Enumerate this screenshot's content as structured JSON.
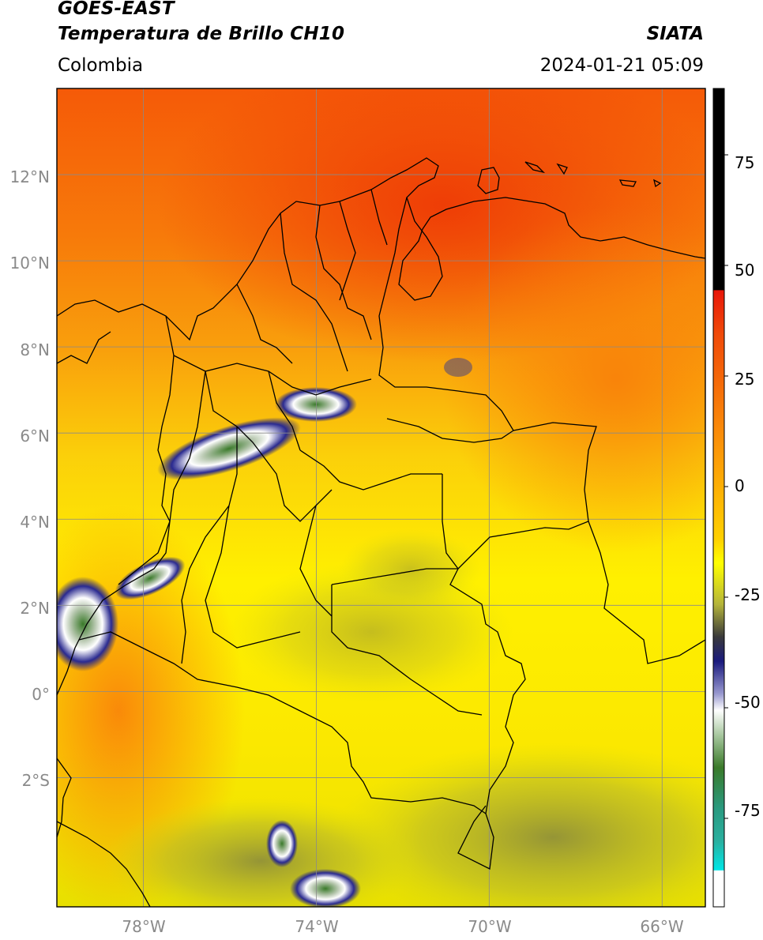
{
  "header": {
    "satellite": "GOES-EAST",
    "product": "Temperatura de Brillo CH10",
    "source": "SIATA",
    "region": "Colombia",
    "timestamp": "2024-01-21 05:09"
  },
  "map": {
    "lon_range": [
      -80,
      -65
    ],
    "lat_range": [
      -5,
      14
    ],
    "lat_ticks": [
      "12°N",
      "10°N",
      "8°N",
      "6°N",
      "4°N",
      "2°N",
      "0°",
      "2°S"
    ],
    "lon_ticks": [
      "78°W",
      "74°W",
      "70°W",
      "66°W"
    ],
    "grid": true
  },
  "colorbar": {
    "labels": [
      "75",
      "50",
      "25",
      "0",
      "-25",
      "-50",
      "-75"
    ],
    "range": [
      -95,
      90
    ],
    "colors": {
      "hot": "#000000",
      "red": "#e8170a",
      "orange": "#fa8c0a",
      "yellow": "#ffff00",
      "olive": "#8b8c3c",
      "navy": "#1a1a7e",
      "white": "#ffffff",
      "green": "#3a7a2a",
      "teal": "#2ab0a0",
      "cyan": "#00e6e6"
    }
  }
}
